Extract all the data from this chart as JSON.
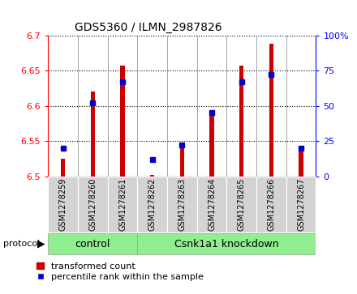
{
  "title": "GDS5360 / ILMN_2987826",
  "samples": [
    "GSM1278259",
    "GSM1278260",
    "GSM1278261",
    "GSM1278262",
    "GSM1278263",
    "GSM1278264",
    "GSM1278265",
    "GSM1278266",
    "GSM1278267"
  ],
  "transformed_count": [
    6.525,
    6.62,
    6.657,
    6.502,
    6.543,
    6.593,
    6.657,
    6.688,
    6.535
  ],
  "percentile_rank": [
    20,
    52,
    67,
    12,
    22,
    45,
    67,
    72,
    20
  ],
  "ylim_left": [
    6.5,
    6.7
  ],
  "ylim_right": [
    0,
    100
  ],
  "yticks_left": [
    6.5,
    6.55,
    6.6,
    6.65,
    6.7
  ],
  "yticks_right": [
    0,
    25,
    50,
    75,
    100
  ],
  "bar_color": "#CC0000",
  "dot_color": "#0000CC",
  "bar_bottom": 6.5,
  "ctrl_count": 3,
  "knockdown_count": 6,
  "ctrl_label": "control",
  "knockdown_label": "Csnk1a1 knockdown",
  "group_color": "#90EE90",
  "protocol_label": "protocol",
  "legend_bar_label": "transformed count",
  "legend_dot_label": "percentile rank within the sample",
  "tick_bg_color": "#d3d3d3",
  "bar_width": 0.15
}
